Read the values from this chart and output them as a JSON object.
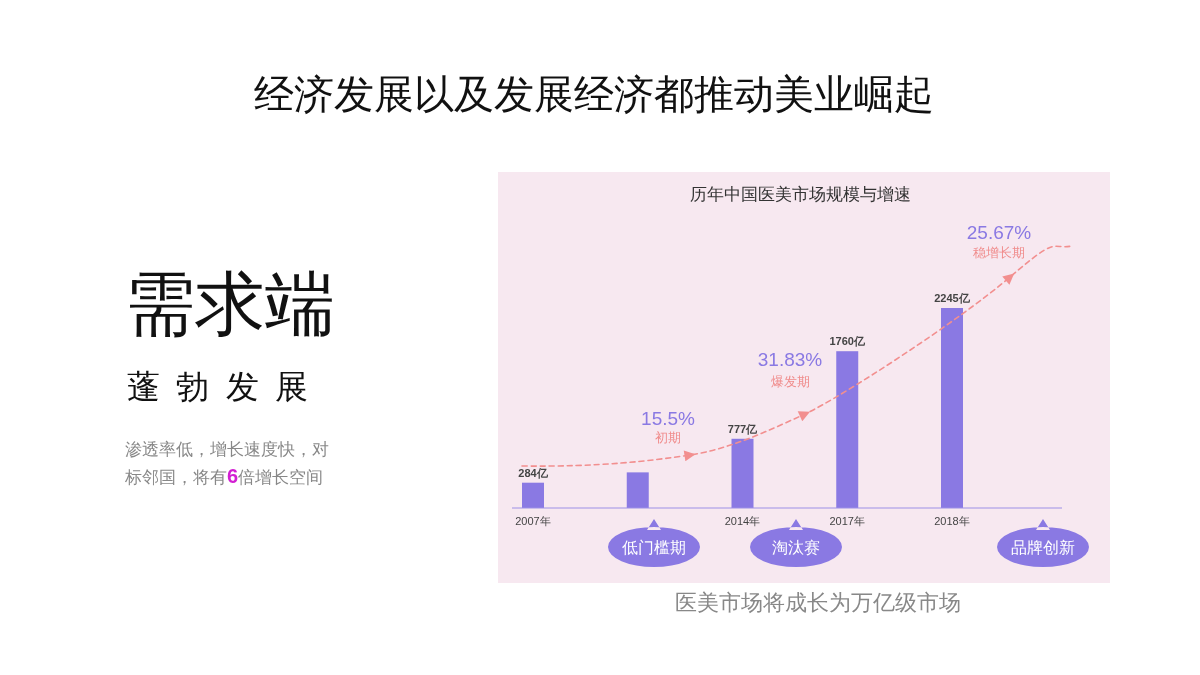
{
  "chart_data": {
    "type": "bar",
    "title": "经济发展以及发展经济都推动美业崛起",
    "subtitle": "历年中国医美市场规模与增速",
    "categories": [
      "2007年",
      null,
      "2014年",
      "2017年",
      "2018年"
    ],
    "values": [
      284,
      400,
      777,
      1760,
      2245
    ],
    "color": "#8a79e3",
    "value_labels": [
      "284亿",
      null,
      "777亿",
      "1760亿",
      "2245亿"
    ],
    "annotations": [
      "15.5%",
      "初期",
      "31.83%",
      "爆发期",
      "25.67%",
      "稳增长期",
      "低门槛期",
      "淘汰赛",
      "品牌创新",
      "需求端",
      "蓬 勃 发 展",
      "渗透率低，增长速度快，对标邻国，将有6倍增长空间",
      "医美市场将成长为万亿级市场"
    ]
  }
}
